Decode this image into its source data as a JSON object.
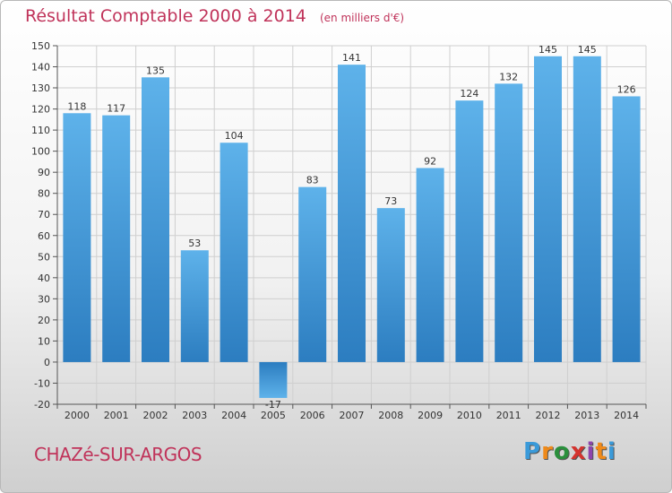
{
  "chart_data": {
    "type": "bar",
    "title": "Résultat Comptable 2000 à 2014",
    "subtitle": "(en milliers d'€)",
    "categories": [
      "2000",
      "2001",
      "2002",
      "2003",
      "2004",
      "2005",
      "2006",
      "2007",
      "2008",
      "2009",
      "2010",
      "2011",
      "2012",
      "2013",
      "2014"
    ],
    "values": [
      118,
      117,
      135,
      53,
      104,
      -17,
      83,
      141,
      73,
      92,
      124,
      132,
      145,
      145,
      126
    ],
    "ylim": [
      -20,
      150
    ],
    "yticks": [
      -20,
      -10,
      0,
      10,
      20,
      30,
      40,
      50,
      60,
      70,
      80,
      90,
      100,
      110,
      120,
      130,
      140,
      150
    ],
    "grid": true,
    "colors": {
      "bar_light": "#5eb2ea",
      "bar_dark": "#2c7dc0",
      "grid": "#cfcfcf",
      "title": "#c0335a"
    }
  },
  "footer": {
    "commune": "CHAZé-SUR-ARGOS"
  },
  "logo": {
    "letters": [
      "P",
      "r",
      "o",
      "x",
      "i",
      "t",
      "i"
    ],
    "colors": [
      "#3a9ad9",
      "#ef8a1a",
      "#2a8f3c",
      "#d4342f",
      "#8e44ad",
      "#ef8a1a",
      "#3a9ad9"
    ]
  }
}
